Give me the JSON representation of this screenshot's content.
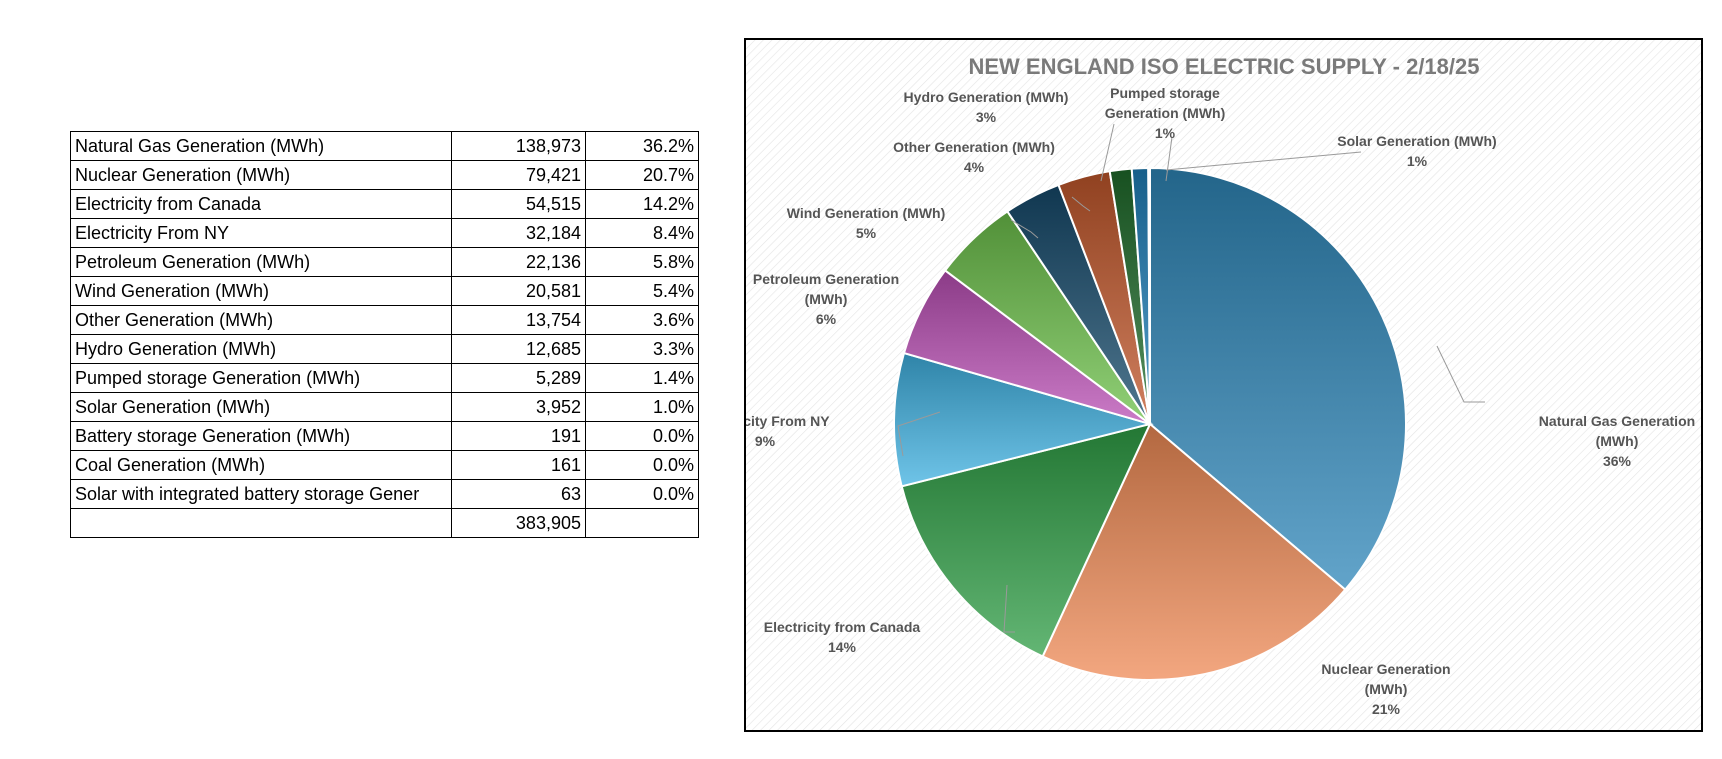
{
  "table": {
    "rows": [
      {
        "label": "Natural Gas Generation (MWh)",
        "value": "138,973",
        "pct": "36.2%"
      },
      {
        "label": "Nuclear Generation (MWh)",
        "value": "79,421",
        "pct": "20.7%"
      },
      {
        "label": "Electricity from Canada",
        "value": "54,515",
        "pct": "14.2%"
      },
      {
        "label": "Electricity From NY",
        "value": "32,184",
        "pct": "8.4%"
      },
      {
        "label": "Petroleum Generation (MWh)",
        "value": "22,136",
        "pct": "5.8%"
      },
      {
        "label": "Wind Generation (MWh)",
        "value": "20,581",
        "pct": "5.4%"
      },
      {
        "label": "Other Generation (MWh)",
        "value": "13,754",
        "pct": "3.6%"
      },
      {
        "label": "Hydro Generation (MWh)",
        "value": "12,685",
        "pct": "3.3%"
      },
      {
        "label": "Pumped storage Generation (MWh)",
        "value": "5,289",
        "pct": "1.4%"
      },
      {
        "label": "Solar Generation (MWh)",
        "value": "3,952",
        "pct": "1.0%"
      },
      {
        "label": "Battery storage Generation (MWh)",
        "value": "191",
        "pct": "0.0%"
      },
      {
        "label": "Coal Generation (MWh)",
        "value": "161",
        "pct": "0.0%"
      },
      {
        "label": "Solar with integrated battery storage Gener",
        "value": "63",
        "pct": "0.0%"
      }
    ],
    "total": "383,905"
  },
  "chart_data": {
    "type": "pie",
    "title": "NEW ENGLAND ISO ELECTRIC SUPPLY  - 2/18/25",
    "slices": [
      {
        "name": "Natural Gas Generation (MWh)",
        "value": 138973,
        "label": [
          "Natural Gas Generation",
          "(MWh)"
        ],
        "pct_label": "36%",
        "color": "#2e86b8"
      },
      {
        "name": "Nuclear Generation (MWh)",
        "value": 79421,
        "label": [
          "Nuclear Generation",
          "(MWh)"
        ],
        "pct_label": "21%",
        "color": "#ef8a55"
      },
      {
        "name": "Electricity from Canada",
        "value": 54515,
        "label": [
          "Electricity from Canada"
        ],
        "pct_label": "14%",
        "color": "#2f9e45"
      },
      {
        "name": "Electricity From NY",
        "value": 32184,
        "label": [
          "Electricity From NY"
        ],
        "pct_label": "9%",
        "color": "#3fb0e0"
      },
      {
        "name": "Petroleum Generation (MWh)",
        "value": 22136,
        "label": [
          "Petroleum Generation",
          "(MWh)"
        ],
        "pct_label": "6%",
        "color": "#b94fb4"
      },
      {
        "name": "Wind Generation (MWh)",
        "value": 20581,
        "label": [
          "Wind Generation (MWh)"
        ],
        "pct_label": "5%",
        "color": "#6cc04a"
      },
      {
        "name": "Other Generation (MWh)",
        "value": 13754,
        "label": [
          "Other Generation (MWh)"
        ],
        "pct_label": "4%",
        "color": "#15496a"
      },
      {
        "name": "Hydro Generation (MWh)",
        "value": 12685,
        "label": [
          "Hydro Generation (MWh)"
        ],
        "pct_label": "3%",
        "color": "#c0562a"
      },
      {
        "name": "Pumped storage Generation (MWh)",
        "value": 5289,
        "label": [
          "Pumped storage",
          "Generation (MWh)"
        ],
        "pct_label": "1%",
        "color": "#1f6b2a"
      },
      {
        "name": "Solar Generation (MWh)",
        "value": 3952,
        "label": [
          "Solar Generation (MWh)"
        ],
        "pct_label": "1%",
        "color": "#1e7fb8"
      },
      {
        "name": "Battery storage Generation (MWh)",
        "value": 191,
        "color": "#e0805a"
      },
      {
        "name": "Coal Generation (MWh)",
        "value": 161,
        "color": "#5a9e3c"
      },
      {
        "name": "Solar with integrated battery storage Generation (MWh)",
        "value": 63,
        "color": "#9e5fb0"
      }
    ]
  }
}
